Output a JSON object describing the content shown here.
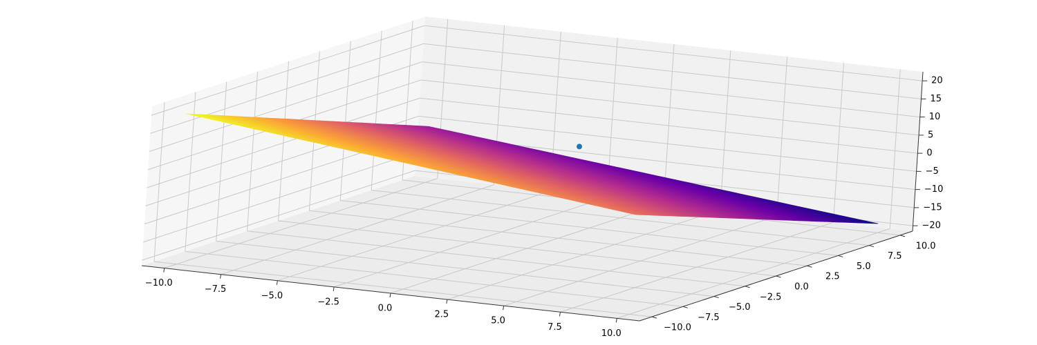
{
  "chart_data": {
    "type": "surface3d",
    "xlim": [
      -11,
      11
    ],
    "ylim": [
      -11,
      11
    ],
    "zlim": [
      -21.5,
      22.5
    ],
    "xticks": [
      {
        "value": -10,
        "label": "−10.0"
      },
      {
        "value": -7.5,
        "label": "−7.5"
      },
      {
        "value": -5,
        "label": "−5.0"
      },
      {
        "value": -2.5,
        "label": "−2.5"
      },
      {
        "value": 0,
        "label": "0.0"
      },
      {
        "value": 2.5,
        "label": "2.5"
      },
      {
        "value": 5,
        "label": "5.0"
      },
      {
        "value": 7.5,
        "label": "7.5"
      },
      {
        "value": 10,
        "label": "10.0"
      }
    ],
    "yticks": [
      {
        "value": -10,
        "label": "−10.0"
      },
      {
        "value": -7.5,
        "label": "−7.5"
      },
      {
        "value": -5,
        "label": "−5.0"
      },
      {
        "value": -2.5,
        "label": "−2.5"
      },
      {
        "value": 0,
        "label": "0.0"
      },
      {
        "value": 2.5,
        "label": "2.5"
      },
      {
        "value": 5,
        "label": "5.0"
      },
      {
        "value": 7.5,
        "label": "7.5"
      },
      {
        "value": 10,
        "label": "10.0"
      }
    ],
    "zticks": [
      {
        "value": -20,
        "label": "−20"
      },
      {
        "value": -15,
        "label": "−15"
      },
      {
        "value": -10,
        "label": "−10"
      },
      {
        "value": -5,
        "label": "−5"
      },
      0,
      5,
      10,
      15,
      20
    ],
    "grid": true,
    "surface": {
      "x": [
        -10,
        10
      ],
      "y": [
        -10,
        10
      ],
      "z": [
        [
          20,
          -6
        ],
        [
          6,
          -19
        ]
      ],
      "colormap": [
        "#0d0887",
        "#6a00a8",
        "#b12a90",
        "#e16462",
        "#fca636",
        "#f0f921"
      ]
    },
    "scatter": {
      "x": [
        2
      ],
      "y": [
        0
      ],
      "z": [
        8
      ],
      "color": "#1f77b4"
    }
  }
}
